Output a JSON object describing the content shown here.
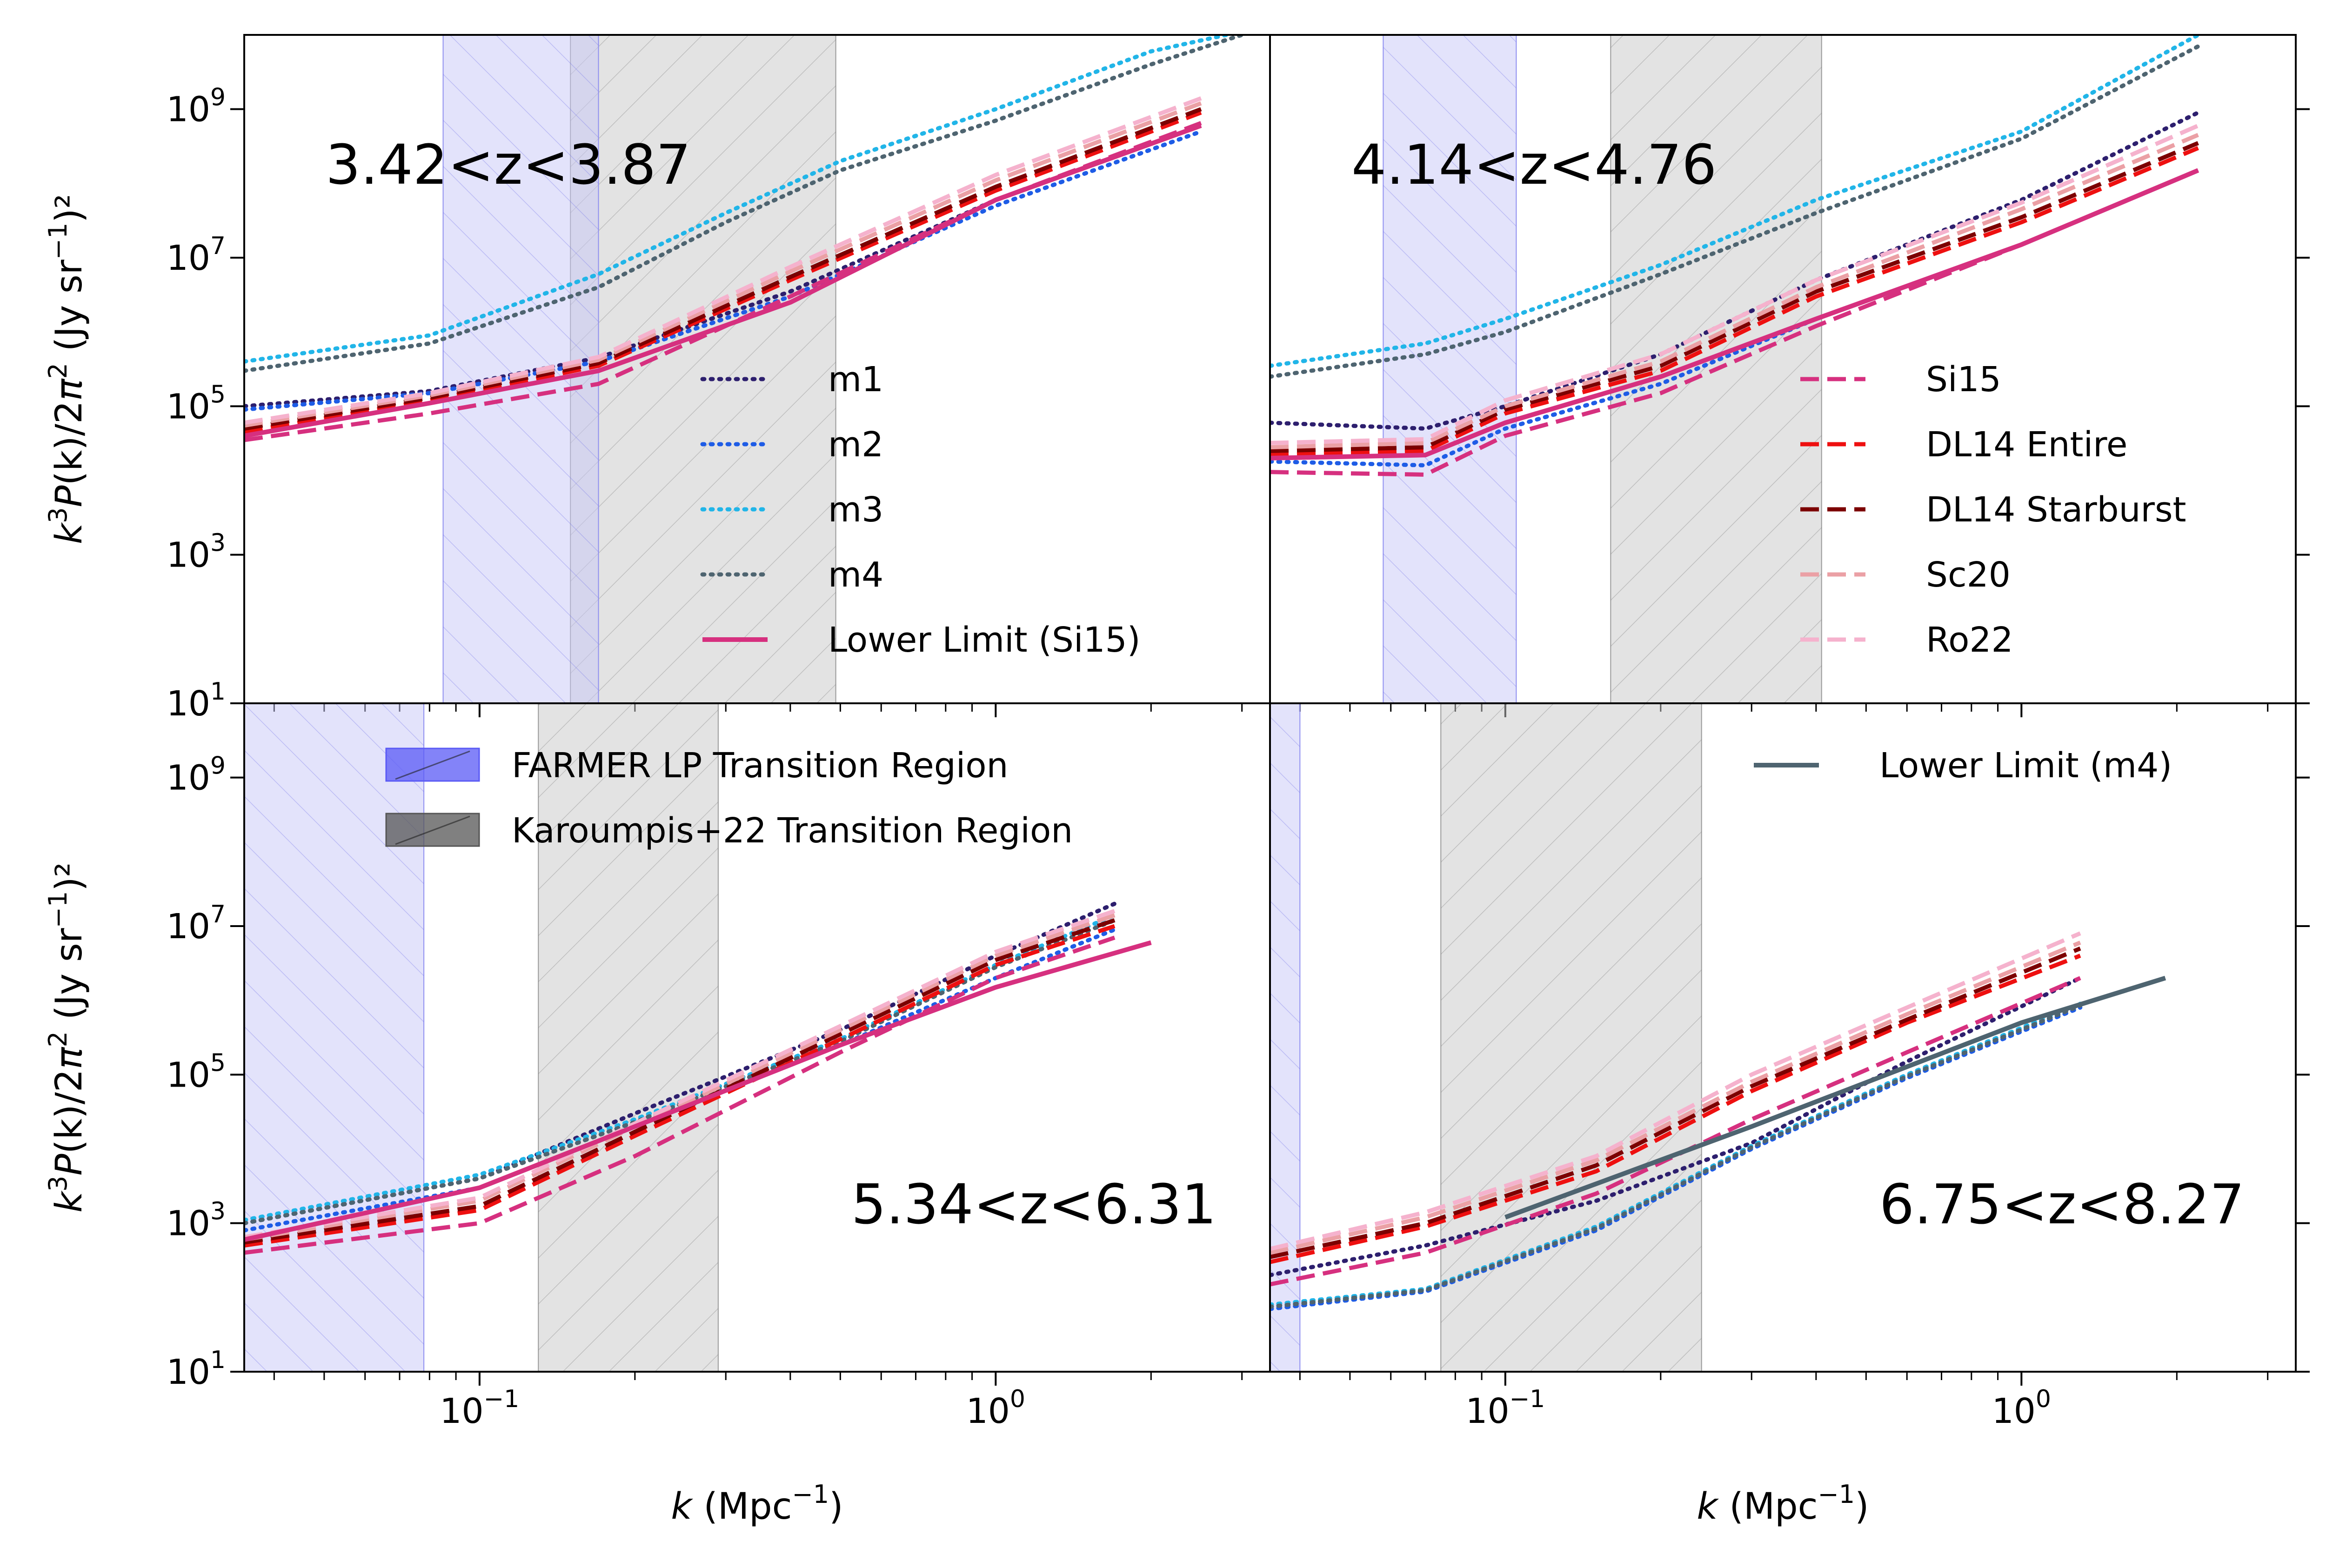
{
  "chart_data": {
    "type": "line",
    "layout": "2x2 panels, shared log axes",
    "xscale": "log",
    "yscale": "log",
    "xlim": [
      0.035,
      3.4
    ],
    "ylim": [
      10,
      10000000000.0
    ],
    "x_ticks": [
      {
        "value": 0.1,
        "base": "10",
        "exp": "−1"
      },
      {
        "value": 1.0,
        "base": "10",
        "exp": "0"
      }
    ],
    "y_ticks": [
      {
        "value": 10,
        "base": "10",
        "exp": "1"
      },
      {
        "value": 1000,
        "base": "10",
        "exp": "3"
      },
      {
        "value": 100000,
        "base": "10",
        "exp": "5"
      },
      {
        "value": 10000000,
        "base": "10",
        "exp": "7"
      },
      {
        "value": 1000000000,
        "base": "10",
        "exp": "9"
      }
    ],
    "xlabel": {
      "var": "k",
      "unit": " (Mpc",
      "exp": "−1",
      "close": ")"
    },
    "ylabel": {
      "k": "k",
      "cube": "3",
      "p": "P",
      "arg": "(k)/2",
      "pi": "π",
      "sq": "2",
      "unit": " (Jy sr",
      "exp": "−1",
      "close": ")²"
    },
    "series_styles": [
      {
        "name": "m1",
        "color": "#2d1f6e",
        "dash": "dotted"
      },
      {
        "name": "m2",
        "color": "#1e5ce6",
        "dash": "dotted"
      },
      {
        "name": "m3",
        "color": "#21b5e8",
        "dash": "dotted"
      },
      {
        "name": "m4",
        "color": "#4e6470",
        "dash": "dotted"
      },
      {
        "name": "Lower Limit (Si15)",
        "color": "#d6307f",
        "dash": "solid"
      },
      {
        "name": "Si15",
        "color": "#d6307f",
        "dash": "dashed"
      },
      {
        "name": "DL14 Entire",
        "color": "#ee1010",
        "dash": "dashed"
      },
      {
        "name": "DL14 Starburst",
        "color": "#7c0000",
        "dash": "dashed"
      },
      {
        "name": "Sc20",
        "color": "#eba0a5",
        "dash": "dashed"
      },
      {
        "name": "Ro22",
        "color": "#f5b2cd",
        "dash": "dashed"
      },
      {
        "name": "Lower Limit (m4)",
        "color": "#4e6470",
        "dash": "solid"
      }
    ],
    "legends": {
      "models_left": [
        "m1",
        "m2",
        "m3",
        "m4",
        "Lower Limit (Si15)"
      ],
      "models_right": [
        "Si15",
        "DL14 Entire",
        "DL14 Starburst",
        "Sc20",
        "Ro22"
      ],
      "regions": [
        {
          "label": "FARMER LP Transition Region",
          "fill": "#5a5af5",
          "hatch": "/"
        },
        {
          "label": "Karoumpis+22 Transition Region",
          "fill": "#555555",
          "hatch": "\\"
        }
      ],
      "lower_limit_m4": "Lower Limit (m4)"
    },
    "panels": [
      {
        "label": "3.42<z<3.87",
        "farmer_region": [
          0.085,
          0.17
        ],
        "karoumpis_region": [
          0.15,
          0.49
        ],
        "series": {
          "m1": {
            "x": [
              0.035,
              0.08,
              0.17,
              0.4,
              1.0,
              2.5
            ],
            "y": [
              100000,
              160000,
              450000,
              3500000,
              60000000,
              600000000
            ]
          },
          "m2": {
            "x": [
              0.035,
              0.08,
              0.17,
              0.4,
              1.0,
              2.5
            ],
            "y": [
              90000,
              150000,
              400000,
              3000000,
              50000000,
              500000000
            ]
          },
          "m3": {
            "x": [
              0.035,
              0.08,
              0.17,
              0.3,
              0.5,
              1.0,
              2.0,
              2.8
            ],
            "y": [
              400000,
              900000,
              6000000,
              40000000,
              200000000,
              1000000000,
              6000000000,
              10000000000
            ]
          },
          "m4": {
            "x": [
              0.035,
              0.08,
              0.17,
              0.3,
              0.5,
              1.0,
              2.0,
              3.0
            ],
            "y": [
              300000,
              700000,
              4000000,
              30000000,
              150000000,
              700000000,
              4000000000,
              10000000000
            ]
          },
          "Lower Limit (Si15)": {
            "x": [
              0.035,
              0.08,
              0.17,
              0.4,
              1.0,
              2.5
            ],
            "y": [
              40000,
              110000,
              300000,
              2500000,
              60000000,
              600000000
            ]
          },
          "Si15": {
            "x": [
              0.035,
              0.08,
              0.17,
              0.4,
              1.0,
              2.5
            ],
            "y": [
              35000,
              80000,
              200000,
              3000000,
              60000000,
              650000000
            ]
          },
          "DL14 Entire": {
            "x": [
              0.035,
              0.08,
              0.17,
              0.4,
              1.0,
              2.5
            ],
            "y": [
              45000,
              120000,
              350000,
              5000000,
              80000000,
              900000000
            ]
          },
          "DL14 Starburst": {
            "x": [
              0.035,
              0.08,
              0.17,
              0.4,
              1.0,
              2.5
            ],
            "y": [
              50000,
              130000,
              380000,
              5500000,
              90000000,
              1000000000
            ]
          },
          "Sc20": {
            "x": [
              0.035,
              0.08,
              0.17,
              0.4,
              1.0,
              2.5
            ],
            "y": [
              55000,
              140000,
              420000,
              6500000,
              110000000,
              1200000000
            ]
          },
          "Ro22": {
            "x": [
              0.035,
              0.08,
              0.17,
              0.4,
              1.0,
              2.5
            ],
            "y": [
              60000,
              150000,
              460000,
              7500000,
              130000000,
              1400000000
            ]
          }
        }
      },
      {
        "label": "4.14<z<4.76",
        "farmer_region": [
          0.058,
          0.105
        ],
        "karoumpis_region": [
          0.16,
          0.41
        ],
        "series": {
          "m1": {
            "x": [
              0.035,
              0.07,
              0.1,
              0.2,
              0.4,
              1.0,
              2.2
            ],
            "y": [
              60000,
              50000,
              100000,
              500000,
              5000000,
              60000000,
              900000000
            ]
          },
          "m2": {
            "x": [
              0.035,
              0.07,
              0.1,
              0.2,
              0.4,
              1.0,
              2.2
            ],
            "y": [
              18000,
              16000,
              50000,
              200000,
              1500000,
              15000000,
              150000000
            ]
          },
          "m3": {
            "x": [
              0.035,
              0.07,
              0.1,
              0.2,
              0.4,
              1.0,
              2.2
            ],
            "y": [
              350000,
              700000,
              1500000,
              8000000,
              60000000,
              500000000,
              10000000000
            ]
          },
          "m4": {
            "x": [
              0.035,
              0.07,
              0.1,
              0.2,
              0.4,
              1.0,
              2.2
            ],
            "y": [
              250000,
              500000,
              1000000,
              6000000,
              40000000,
              400000000,
              7000000000
            ]
          },
          "Lower Limit (Si15)": {
            "x": [
              0.035,
              0.07,
              0.1,
              0.2,
              0.4,
              1.0,
              2.2
            ],
            "y": [
              20000,
              22000,
              60000,
              250000,
              1500000,
              15000000,
              150000000
            ]
          },
          "Si15": {
            "x": [
              0.035,
              0.07,
              0.1,
              0.2,
              0.4,
              1.0,
              2.2
            ],
            "y": [
              13000,
              12000,
              40000,
              150000,
              1200000,
              15000000,
              150000000
            ]
          },
          "DL14 Entire": {
            "x": [
              0.035,
              0.07,
              0.1,
              0.2,
              0.4,
              1.0,
              2.2
            ],
            "y": [
              22000,
              25000,
              80000,
              300000,
              3000000,
              30000000,
              300000000
            ]
          },
          "DL14 Starburst": {
            "x": [
              0.035,
              0.07,
              0.1,
              0.2,
              0.4,
              1.0,
              2.2
            ],
            "y": [
              25000,
              28000,
              90000,
              350000,
              3500000,
              35000000,
              350000000
            ]
          },
          "Sc20": {
            "x": [
              0.035,
              0.07,
              0.1,
              0.2,
              0.4,
              1.0,
              2.2
            ],
            "y": [
              28000,
              32000,
              100000,
              400000,
              4000000,
              45000000,
              450000000
            ]
          },
          "Ro22": {
            "x": [
              0.035,
              0.07,
              0.1,
              0.2,
              0.4,
              1.0,
              2.2
            ],
            "y": [
              32000,
              36000,
              120000,
              500000,
              5000000,
              55000000,
              600000000
            ]
          }
        }
      },
      {
        "label": "5.34<z<6.31",
        "farmer_region": [
          0.035,
          0.078
        ],
        "karoumpis_region": [
          0.13,
          0.29
        ],
        "series": {
          "m1": {
            "x": [
              0.035,
              0.1,
              0.2,
              0.5,
              1.0,
              1.7
            ],
            "y": [
              1000,
              4000,
              30000,
              400000,
              4000000,
              20000000
            ]
          },
          "m2": {
            "x": [
              0.035,
              0.1,
              0.2,
              0.5,
              1.0,
              1.7
            ],
            "y": [
              800,
              3000,
              20000,
              250000,
              2000000,
              9000000
            ]
          },
          "m3": {
            "x": [
              0.035,
              0.1,
              0.2,
              0.5,
              1.0,
              1.7
            ],
            "y": [
              1100,
              4500,
              25000,
              300000,
              3000000,
              14000000
            ]
          },
          "m4": {
            "x": [
              0.035,
              0.1,
              0.2,
              0.5,
              1.0,
              1.7
            ],
            "y": [
              1000,
              4000,
              23000,
              280000,
              2800000,
              12000000
            ]
          },
          "Lower Limit (Si15)": {
            "x": [
              0.035,
              0.1,
              0.2,
              0.5,
              1.0,
              2.0
            ],
            "y": [
              600,
              3000,
              20000,
              250000,
              1500000,
              6000000
            ]
          },
          "Si15": {
            "x": [
              0.035,
              0.1,
              0.2,
              0.5,
              1.0,
              1.7
            ],
            "y": [
              400,
              1000,
              8000,
              200000,
              2000000,
              7000000
            ]
          },
          "DL14 Entire": {
            "x": [
              0.035,
              0.1,
              0.2,
              0.5,
              1.0,
              1.7
            ],
            "y": [
              500,
              1500,
              15000,
              300000,
              3000000,
              10000000
            ]
          },
          "DL14 Starburst": {
            "x": [
              0.035,
              0.1,
              0.2,
              0.5,
              1.0,
              1.7
            ],
            "y": [
              550,
              1700,
              17000,
              350000,
              3500000,
              12000000
            ]
          },
          "Sc20": {
            "x": [
              0.035,
              0.1,
              0.2,
              0.5,
              1.0,
              1.7
            ],
            "y": [
              600,
              2000,
              20000,
              400000,
              4000000,
              14000000
            ]
          },
          "Ro22": {
            "x": [
              0.035,
              0.1,
              0.2,
              0.5,
              1.0,
              1.7
            ],
            "y": [
              650,
              2200,
              22000,
              450000,
              4500000,
              16000000
            ]
          }
        }
      },
      {
        "label": "6.75<z<8.27",
        "farmer_region": [
          0.035,
          0.04
        ],
        "karoumpis_region": [
          0.075,
          0.24
        ],
        "series": {
          "m1": {
            "x": [
              0.035,
              0.07,
              0.15,
              0.3,
              0.6,
              1.3
            ],
            "y": [
              200,
              500,
              2000,
              12000,
              150000,
              2000000
            ]
          },
          "m2": {
            "x": [
              0.035,
              0.07,
              0.15,
              0.3,
              0.6,
              1.3
            ],
            "y": [
              70,
              120,
              800,
              10000,
              90000,
              800000
            ]
          },
          "m3": {
            "x": [
              0.035,
              0.07,
              0.15,
              0.3,
              0.6,
              1.3
            ],
            "y": [
              80,
              130,
              900,
              11000,
              100000,
              900000
            ]
          },
          "m4": {
            "x": [
              0.035,
              0.07,
              0.15,
              0.3,
              0.6,
              1.3
            ],
            "y": [
              75,
              125,
              850,
              10500,
              95000,
              850000
            ]
          },
          "Lower Limit (m4)": {
            "x": [
              0.1,
              0.3,
              1.0,
              1.9
            ],
            "y": [
              1200,
              20000,
              500000,
              2000000
            ]
          },
          "Si15": {
            "x": [
              0.035,
              0.07,
              0.15,
              0.3,
              0.6,
              1.3
            ],
            "y": [
              150,
              400,
              2500,
              25000,
              200000,
              2000000
            ]
          },
          "DL14 Entire": {
            "x": [
              0.035,
              0.07,
              0.15,
              0.3,
              0.6,
              1.3
            ],
            "y": [
              300,
              900,
              5000,
              60000,
              500000,
              4000000
            ]
          },
          "DL14 Starburst": {
            "x": [
              0.035,
              0.07,
              0.15,
              0.3,
              0.6,
              1.3
            ],
            "y": [
              350,
              1000,
              6000,
              70000,
              550000,
              5000000
            ]
          },
          "Sc20": {
            "x": [
              0.035,
              0.07,
              0.15,
              0.3,
              0.6,
              1.3
            ],
            "y": [
              400,
              1200,
              7000,
              80000,
              650000,
              6000000
            ]
          },
          "Ro22": {
            "x": [
              0.035,
              0.07,
              0.15,
              0.3,
              0.6,
              1.3
            ],
            "y": [
              450,
              1400,
              8000,
              100000,
              800000,
              8000000
            ]
          }
        }
      }
    ]
  }
}
